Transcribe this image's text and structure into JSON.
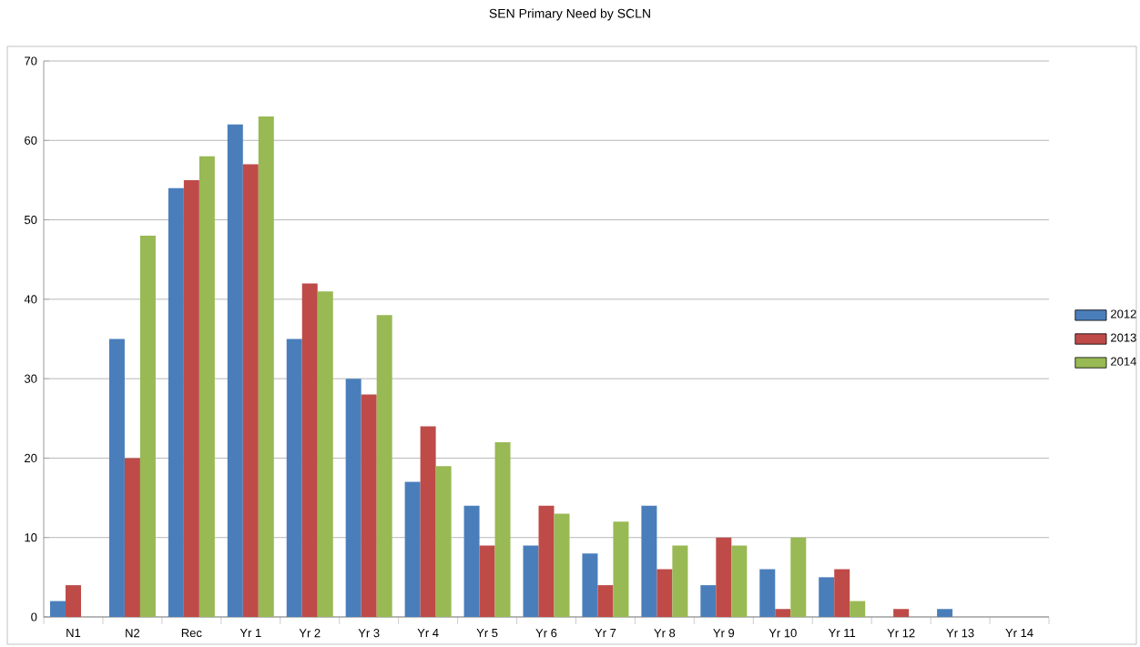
{
  "chart_data": {
    "type": "bar",
    "title": "SEN Primary Need by SCLN",
    "categories": [
      "N1",
      "N2",
      "Rec",
      "Yr 1",
      "Yr 2",
      "Yr 3",
      "Yr 4",
      "Yr 5",
      "Yr 6",
      "Yr 7",
      "Yr 8",
      "Yr 9",
      "Yr 10",
      "Yr 11",
      "Yr 12",
      "Yr 13",
      "Yr 14"
    ],
    "series": [
      {
        "name": "2012",
        "color": "#4a7ebb",
        "values": [
          2,
          35,
          54,
          62,
          35,
          30,
          17,
          14,
          9,
          8,
          14,
          4,
          6,
          5,
          0,
          1,
          0
        ]
      },
      {
        "name": "2013",
        "color": "#be4b48",
        "values": [
          4,
          20,
          55,
          57,
          42,
          28,
          24,
          9,
          14,
          4,
          6,
          10,
          1,
          6,
          1,
          0,
          0
        ]
      },
      {
        "name": "2014",
        "color": "#98b954",
        "values": [
          0,
          48,
          58,
          63,
          41,
          38,
          19,
          22,
          13,
          12,
          9,
          9,
          10,
          2,
          0,
          0,
          0
        ]
      }
    ],
    "ylim": [
      0,
      70
    ],
    "yticks": [
      0,
      10,
      20,
      30,
      40,
      50,
      60,
      70
    ],
    "grid": "y",
    "legend": "right"
  }
}
